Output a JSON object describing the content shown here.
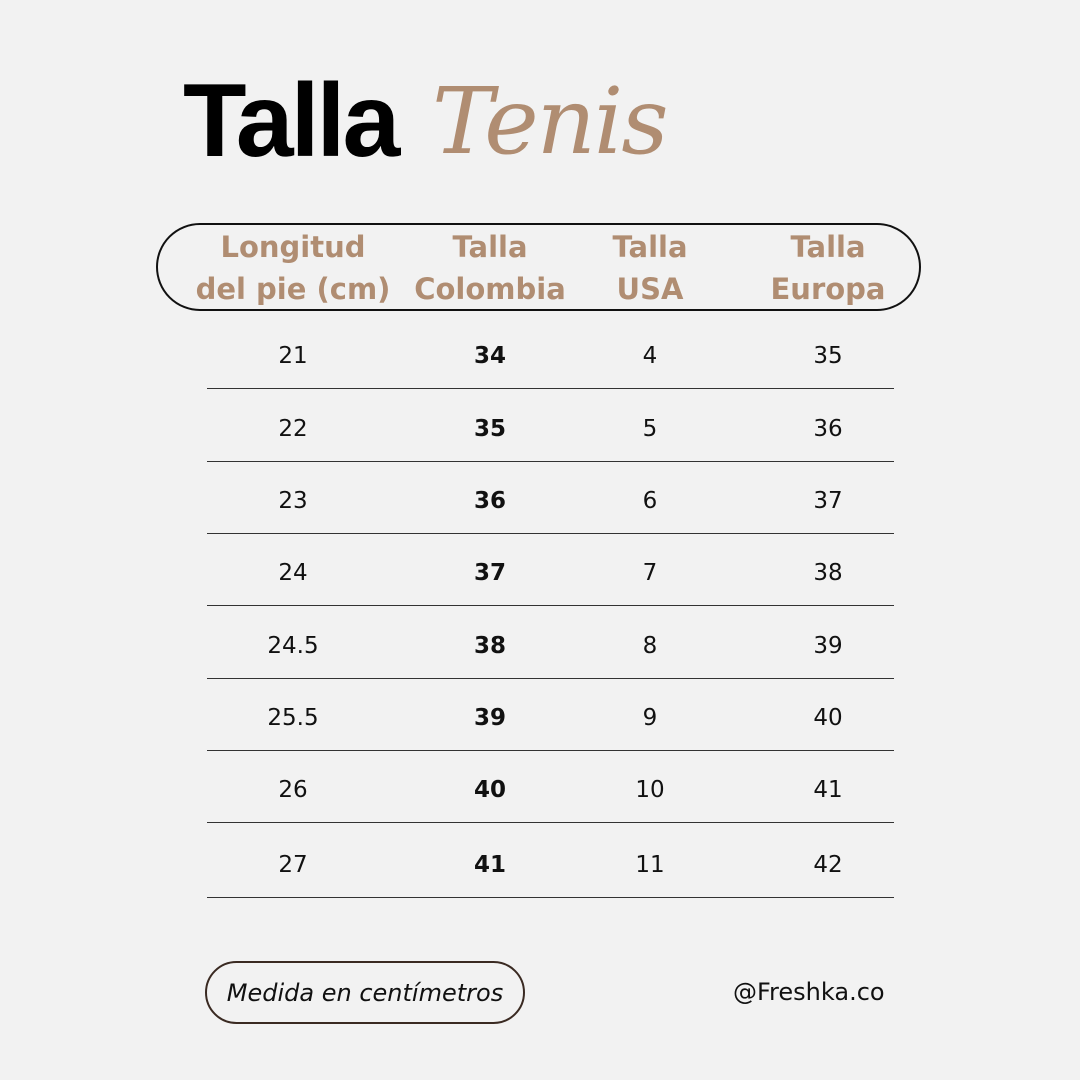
{
  "title": {
    "bold": "Talla",
    "script": "Tenis"
  },
  "accent_color": "#b08d72",
  "headers": [
    "Longitud\ndel pie (cm)",
    "Talla\nColombia",
    "Talla\nUSA",
    "Talla\nEuropa"
  ],
  "rows": [
    [
      "21",
      "34",
      "4",
      "35"
    ],
    [
      "22",
      "35",
      "5",
      "36"
    ],
    [
      "23",
      "36",
      "6",
      "37"
    ],
    [
      "24",
      "37",
      "7",
      "38"
    ],
    [
      "24.5",
      "38",
      "8",
      "39"
    ],
    [
      "25.5",
      "39",
      "9",
      "40"
    ],
    [
      "26",
      "40",
      "10",
      "41"
    ],
    [
      "27",
      "41",
      "11",
      "42"
    ]
  ],
  "footer": {
    "note": "Medida en centímetros",
    "handle": "@Freshka.co"
  }
}
